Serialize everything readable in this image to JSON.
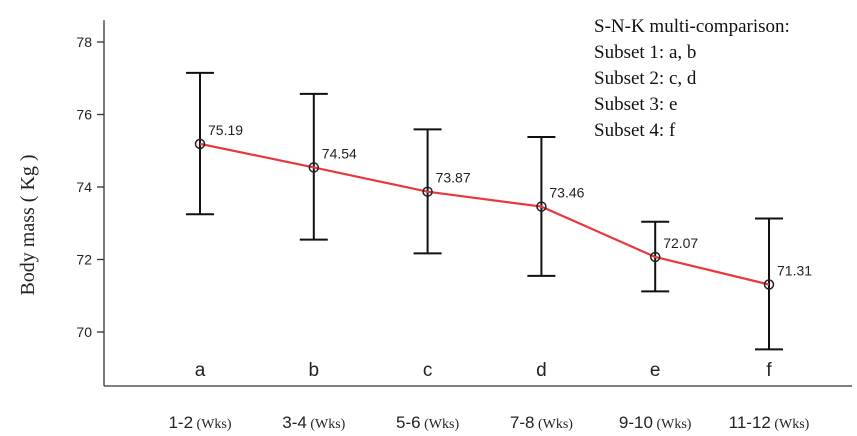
{
  "chart_data": {
    "type": "line",
    "ylabel": "Body mass ( Kg )",
    "ylim": [
      68.8,
      78.6
    ],
    "yticks": [
      70,
      72,
      74,
      76,
      78
    ],
    "grid": false,
    "categories": [
      {
        "main": "1-2",
        "unit": " (Wks)"
      },
      {
        "main": "3-4",
        "unit": " (Wks)"
      },
      {
        "main": "5-6",
        "unit": " (Wks)"
      },
      {
        "main": "7-8",
        "unit": " (Wks)"
      },
      {
        "main": "9-10",
        "unit": " (Wks)"
      },
      {
        "main": "11-12",
        "unit": " (Wks)"
      }
    ],
    "series": [
      {
        "values": [
          75.19,
          74.54,
          73.87,
          73.46,
          72.07,
          71.31
        ],
        "error_low": [
          73.25,
          72.55,
          72.17,
          71.55,
          71.12,
          69.52
        ],
        "error_high": [
          77.15,
          76.57,
          75.59,
          75.38,
          73.04,
          73.13
        ],
        "color": "#e8393f"
      }
    ],
    "data_labels": [
      "75.19",
      "74.54",
      "73.87",
      "73.46",
      "72.07",
      "71.31"
    ],
    "group_letters": [
      "a",
      "b",
      "c",
      "d",
      "e",
      "f"
    ],
    "annotation": [
      "S-N-K multi-comparison:",
      "Subset 1: a, b",
      "Subset 2: c, d",
      "Subset 3: e",
      "Subset 4: f"
    ]
  }
}
